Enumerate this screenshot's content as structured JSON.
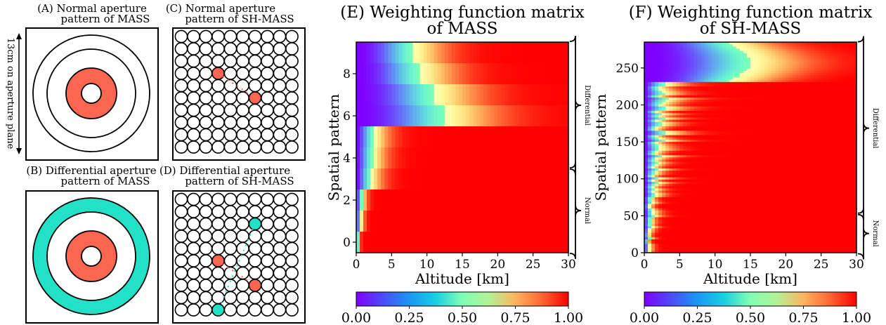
{
  "panels": {
    "A": {
      "title_line1": "(A) Normal aperture",
      "title_line2": "pattern of MASS",
      "side_label": "13cm on aperture plane"
    },
    "B": {
      "title_line1": "(B) Differential aperture",
      "title_line2": "pattern of MASS"
    },
    "C": {
      "title_line1": "(C) Normal aperture",
      "title_line2": "pattern of SH-MASS"
    },
    "D": {
      "title_line1": "(D) Differential aperture",
      "title_line2": "pattern of SH-MASS"
    }
  },
  "colors": {
    "highlight_red": "#fa6650",
    "highlight_cyan": "#22e1c6",
    "heat_max": "#ff1a08"
  },
  "chart_data": [
    {
      "id": "E",
      "type": "heatmap",
      "title_line1": "(E) Weighting function matrix",
      "title_line2": "of MASS",
      "xlabel": "Altitude [km]",
      "ylabel": "Spatial pattern",
      "xlim": [
        0,
        30
      ],
      "ylim": [
        9.5,
        -0.5
      ],
      "xticks": [
        "0",
        "5",
        "10",
        "15",
        "20",
        "25",
        "30"
      ],
      "yticks": [
        "0",
        "2",
        "4",
        "6",
        "8"
      ],
      "rows": 10,
      "colormap": "rainbow",
      "colorbar_ticks": [
        "0.00",
        "0.25",
        "0.50",
        "0.75",
        "1.00"
      ],
      "groups": [
        {
          "label": "Normal",
          "rows": [
            0,
            3
          ]
        },
        {
          "label": "Differential",
          "rows": [
            4,
            9
          ]
        }
      ],
      "half_saturation_altitude_km": [
        8,
        9,
        11,
        12.5,
        2.5,
        2.3,
        2.0,
        0.8,
        0.6,
        0.3
      ]
    },
    {
      "id": "F",
      "type": "heatmap",
      "title_line1": "(F) Weighting function matrix",
      "title_line2": "of SH-MASS",
      "xlabel": "Altitude [km]",
      "ylabel": "Spatial pattern",
      "xlim": [
        0,
        30
      ],
      "ylim": [
        285,
        0
      ],
      "xticks": [
        "0",
        "5",
        "10",
        "15",
        "20",
        "25",
        "30"
      ],
      "yticks": [
        "0",
        "50",
        "100",
        "150",
        "200",
        "250"
      ],
      "rows": 285,
      "colormap": "rainbow",
      "colorbar_ticks": [
        "0.00",
        "0.25",
        "0.50",
        "0.75",
        "1.00"
      ],
      "groups": [
        {
          "label": "Normal",
          "rows": [
            0,
            52
          ]
        },
        {
          "label": "Differential",
          "rows": [
            53,
            284
          ]
        }
      ],
      "half_saturation_altitude_km": {
        "normal": 12,
        "differential_top": 2.8,
        "differential_bottom": 0.4
      }
    }
  ]
}
